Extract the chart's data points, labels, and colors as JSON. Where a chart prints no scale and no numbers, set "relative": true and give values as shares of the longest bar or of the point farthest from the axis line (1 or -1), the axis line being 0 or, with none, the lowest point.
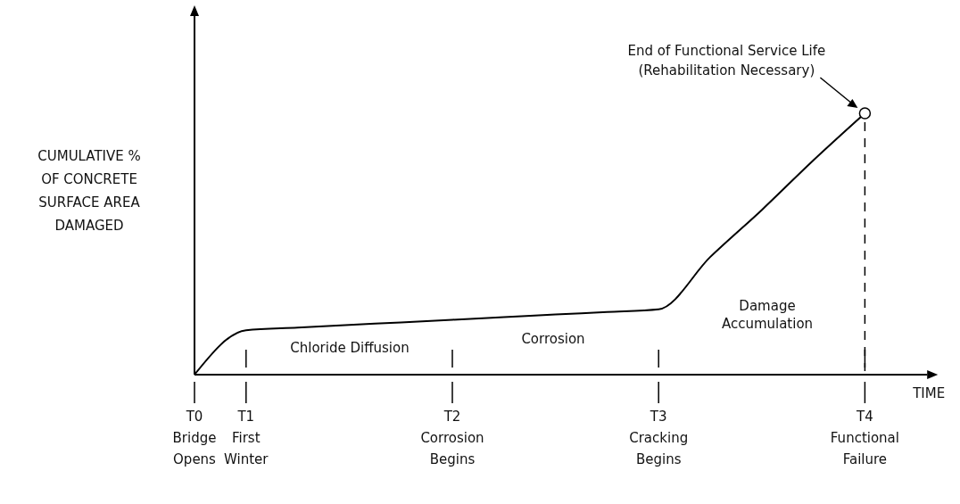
{
  "chart_data": {
    "type": "line",
    "relative": true,
    "ylabel": "CUMULATIVE %\nOF CONCRETE\nSURFACE AREA\nDAMAGED",
    "xlabel": "TIME",
    "categories": [
      "T0\nBridge\nOpens",
      "T1\nFirst\nWinter",
      null,
      null,
      null,
      "T2\nCorrosion\nBegins",
      null,
      null,
      null,
      "T3\nCracking\nBegins",
      null,
      null,
      null,
      "T4\nFunctional\nFailure",
      null
    ],
    "series": [
      {
        "color": "#000000",
        "values": [
          0,
          0.17,
          0.18,
          0.19,
          0.2,
          0.21,
          0.22,
          0.23,
          0.24,
          0.25,
          0.45,
          0.63,
          0.82,
          1,
          null
        ]
      }
    ],
    "ref_lines": [
      {
        "axis": "x",
        "value": "T4\nFunctional\nFailure",
        "line_style": "dashed"
      }
    ],
    "annotations": [
      "End of Functional Service Life\n(Rehabilitation Necessary)",
      "Chloride Diffusion",
      "Corrosion",
      "Damage\nAccumulation"
    ]
  }
}
